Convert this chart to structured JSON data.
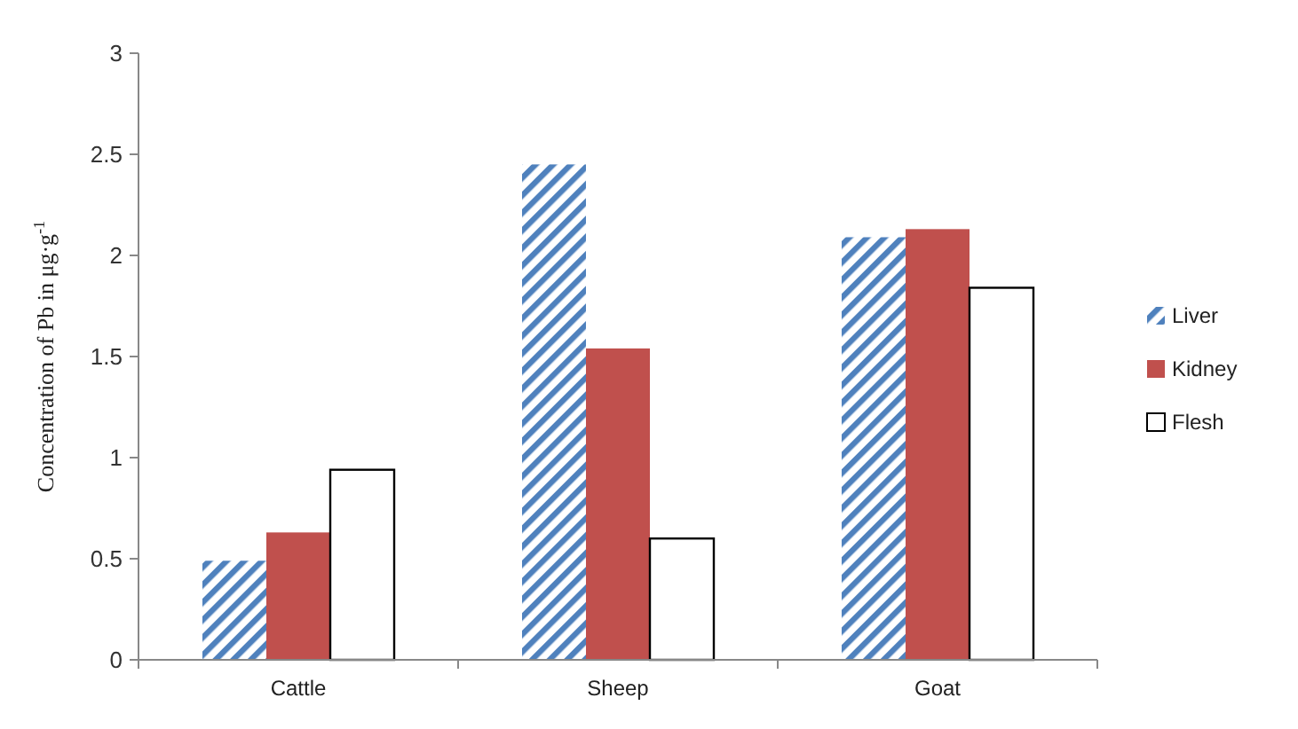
{
  "chart_data": {
    "type": "bar",
    "ylabel": "Concentration of Pb in μg·g$^{-1}$",
    "categories": [
      "Cattle",
      "Sheep",
      "Goat"
    ],
    "series": [
      {
        "name": "Liver",
        "color": "#4f81bd",
        "values": [
          0.49,
          2.45,
          2.09
        ]
      },
      {
        "name": "Kidney",
        "color": "#c0504d",
        "values": [
          0.63,
          1.54,
          2.13
        ]
      },
      {
        "name": "Flesh",
        "color": "#ffffff",
        "values": [
          0.94,
          0.6,
          1.84
        ]
      }
    ],
    "ylim": [
      0,
      3
    ],
    "yticks": [
      0,
      0.5,
      1,
      1.5,
      2,
      2.5,
      3
    ],
    "grid": false,
    "legend": "right"
  }
}
